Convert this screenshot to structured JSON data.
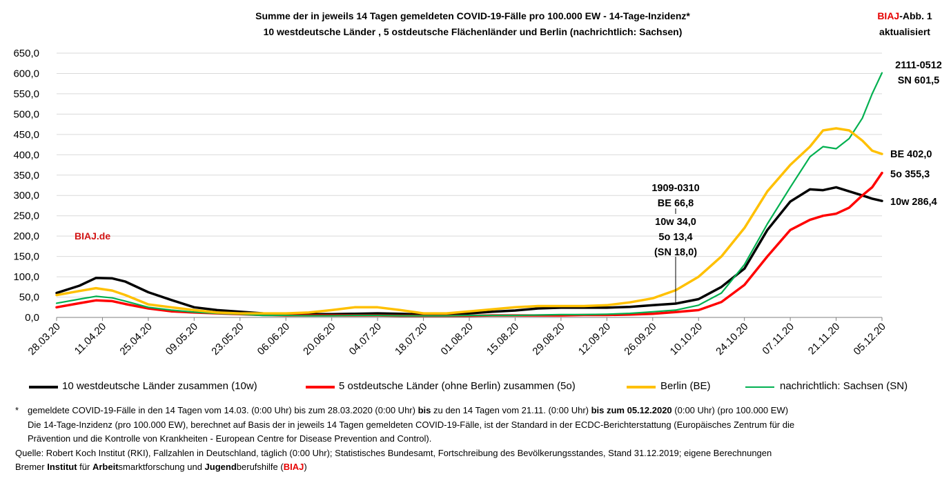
{
  "header": {
    "title_line1": "Summe der in jeweils 14 Tagen gemeldeten COVID-19-Fälle pro 100.000 EW - 14-Tage-Inzidenz*",
    "title_line2": "10 westdeutsche Länder , 5 ostdeutsche Flächenländer und Berlin (nachrichtlich: Sachsen)",
    "badge_prefix": "BIAJ",
    "badge_suffix": "-Abb. 1",
    "badge_line2": "aktualisiert"
  },
  "watermark": "BIAJ.de",
  "annotations": {
    "mid_line1": "1909-0310",
    "mid_line2": "BE 66,8",
    "mid_line3": "10w 34,0",
    "mid_line4": "5o 13,4",
    "mid_line5": "(SN 18,0)",
    "end_top_line1": "2111-0512",
    "end_top_line2": "SN 601,5",
    "end_be": "BE 402,0",
    "end_5o": "5o 355,3",
    "end_10w": "10w 286,4"
  },
  "legend": [
    {
      "label": "10 westdeutsche Länder zusammen (10w)",
      "color": "#000000"
    },
    {
      "label": "5 ostdeutsche Länder (ohne Berlin) zusammen (5o)",
      "color": "#ff0000"
    },
    {
      "label": "Berlin (BE)",
      "color": "#ffc000"
    },
    {
      "label": "nachrichtlich: Sachsen (SN)",
      "color": "#00b050"
    }
  ],
  "notes": {
    "star": "*",
    "line1_part1": "gemeldete COVID-19-Fälle in den 14 Tagen vom 14.03. (0:00 Uhr) bis zum 28.03.2020 (0:00 Uhr) ",
    "line1_bold1": "bis",
    "line1_part2": " zu den 14 Tagen vom 21.11. (0:00 Uhr) ",
    "line1_bold2": "bis zum 05.12.2020",
    "line1_part3": " (0:00 Uhr) (pro 100.000 EW)",
    "line2": "Die 14-Tage-Inzidenz (pro 100.000  EW), berechnet auf Basis der in jeweils 14 Tagen gemeldeten COVID-19-Fälle, ist der Standard in der ECDC-Berichterstattung  (Europäisches Zentrum für die",
    "line3": "Prävention und die Kontrolle von Krankheiten  - European Centre for Disease Prevention and Control).",
    "line4": "Quelle: Robert Koch Institut (RKI), Fallzahlen in Deutschland, täglich (0:00 Uhr); Statistisches Bundesamt, Fortschreibung des Bevölkerungsstandes, Stand 31.12.2019; eigene Berechnungen",
    "line5_a": "Bremer ",
    "line5_b": "Institut",
    "line5_c": " für ",
    "line5_d": "Arbeit",
    "line5_e": "smarktforschung und ",
    "line5_f": "Jugend",
    "line5_g": "berufshilfe (",
    "line5_h": "BIAJ",
    "line5_i": ")"
  },
  "chart_data": {
    "type": "line",
    "x_start": "28.03.20",
    "x_end": "05.12.20",
    "x_ticks": [
      "28.03.20",
      "11.04.20",
      "25.04.20",
      "09.05.20",
      "23.05.20",
      "06.06.20",
      "20.06.20",
      "04.07.20",
      "18.07.20",
      "01.08.20",
      "15.08.20",
      "29.08.20",
      "12.09.20",
      "26.09.20",
      "10.10.20",
      "24.10.20",
      "07.11.20",
      "21.11.20",
      "05.12.20"
    ],
    "y_ticks": [
      "0,0",
      "50,0",
      "100,0",
      "150,0",
      "200,0",
      "250,0",
      "300,0",
      "350,0",
      "400,0",
      "450,0",
      "500,0",
      "550,0",
      "600,0",
      "650,0"
    ],
    "ylim": [
      0,
      650
    ],
    "grid": "horizontal",
    "legend_position": "bottom",
    "series": [
      {
        "name": "10 westdeutsche Länder zusammen (10w)",
        "color": "#000000",
        "x": [
          "28.03.20",
          "04.04.20",
          "09.04.20",
          "14.04.20",
          "18.04.20",
          "25.04.20",
          "02.05.20",
          "09.05.20",
          "16.05.20",
          "23.05.20",
          "30.05.20",
          "06.06.20",
          "13.06.20",
          "20.06.20",
          "27.06.20",
          "04.07.20",
          "11.07.20",
          "18.07.20",
          "25.07.20",
          "01.08.20",
          "08.08.20",
          "15.08.20",
          "22.08.20",
          "29.08.20",
          "05.09.20",
          "12.09.20",
          "19.09.20",
          "26.09.20",
          "03.10.20",
          "10.10.20",
          "17.10.20",
          "24.10.20",
          "31.10.20",
          "07.11.20",
          "13.11.20",
          "17.11.20",
          "21.11.20",
          "25.11.20",
          "29.11.20",
          "02.12.20",
          "05.12.20"
        ],
        "y": [
          60,
          78,
          97,
          96,
          88,
          62,
          43,
          25,
          18,
          14,
          10,
          8,
          8,
          8,
          9,
          10,
          9,
          7,
          7,
          10,
          14,
          17,
          22,
          24,
          24,
          24,
          26,
          30,
          34,
          45,
          75,
          120,
          215,
          285,
          315,
          313,
          320,
          310,
          300,
          292,
          286.4
        ]
      },
      {
        "name": "5 ostdeutsche Länder (ohne Berlin) zusammen (5o)",
        "color": "#ff0000",
        "x": [
          "28.03.20",
          "04.04.20",
          "09.04.20",
          "14.04.20",
          "18.04.20",
          "25.04.20",
          "02.05.20",
          "09.05.20",
          "16.05.20",
          "23.05.20",
          "30.05.20",
          "06.06.20",
          "13.06.20",
          "20.06.20",
          "27.06.20",
          "04.07.20",
          "11.07.20",
          "18.07.20",
          "25.07.20",
          "01.08.20",
          "08.08.20",
          "15.08.20",
          "22.08.20",
          "29.08.20",
          "05.09.20",
          "12.09.20",
          "19.09.20",
          "26.09.20",
          "03.10.20",
          "10.10.20",
          "17.10.20",
          "24.10.20",
          "31.10.20",
          "07.11.20",
          "13.11.20",
          "17.11.20",
          "21.11.20",
          "25.11.20",
          "29.11.20",
          "02.12.20",
          "05.12.20"
        ],
        "y": [
          25,
          35,
          42,
          40,
          33,
          22,
          15,
          12,
          10,
          8,
          6,
          5,
          5,
          5,
          5,
          5,
          4,
          4,
          4,
          4,
          5,
          5,
          5,
          5,
          6,
          6,
          7,
          9,
          13,
          18,
          38,
          80,
          150,
          215,
          240,
          250,
          255,
          270,
          300,
          320,
          355.3
        ]
      },
      {
        "name": "Berlin (BE)",
        "color": "#ffc000",
        "x": [
          "28.03.20",
          "04.04.20",
          "09.04.20",
          "14.04.20",
          "18.04.20",
          "25.04.20",
          "02.05.20",
          "09.05.20",
          "16.05.20",
          "23.05.20",
          "30.05.20",
          "06.06.20",
          "13.06.20",
          "20.06.20",
          "27.06.20",
          "04.07.20",
          "11.07.20",
          "18.07.20",
          "25.07.20",
          "01.08.20",
          "08.08.20",
          "15.08.20",
          "22.08.20",
          "29.08.20",
          "05.09.20",
          "12.09.20",
          "19.09.20",
          "26.09.20",
          "03.10.20",
          "10.10.20",
          "17.10.20",
          "24.10.20",
          "31.10.20",
          "07.11.20",
          "13.11.20",
          "17.11.20",
          "21.11.20",
          "25.11.20",
          "29.11.20",
          "02.12.20",
          "05.12.20"
        ],
        "y": [
          55,
          65,
          72,
          66,
          55,
          32,
          25,
          18,
          12,
          10,
          10,
          10,
          12,
          18,
          25,
          25,
          18,
          10,
          10,
          15,
          20,
          25,
          28,
          28,
          28,
          30,
          37,
          47,
          66.8,
          100,
          150,
          220,
          310,
          375,
          420,
          460,
          465,
          460,
          435,
          410,
          402
        ]
      },
      {
        "name": "nachrichtlich: Sachsen (SN)",
        "color": "#00b050",
        "x": [
          "28.03.20",
          "04.04.20",
          "09.04.20",
          "14.04.20",
          "18.04.20",
          "25.04.20",
          "02.05.20",
          "09.05.20",
          "16.05.20",
          "23.05.20",
          "30.05.20",
          "06.06.20",
          "13.06.20",
          "20.06.20",
          "27.06.20",
          "04.07.20",
          "11.07.20",
          "18.07.20",
          "25.07.20",
          "01.08.20",
          "08.08.20",
          "15.08.20",
          "22.08.20",
          "29.08.20",
          "05.09.20",
          "12.09.20",
          "19.09.20",
          "26.09.20",
          "03.10.20",
          "10.10.20",
          "17.10.20",
          "24.10.20",
          "31.10.20",
          "07.11.20",
          "13.11.20",
          "17.11.20",
          "21.11.20",
          "25.11.20",
          "29.11.20",
          "02.12.20",
          "05.12.20"
        ],
        "y": [
          35,
          45,
          52,
          48,
          40,
          25,
          18,
          13,
          10,
          8,
          5,
          5,
          4,
          4,
          5,
          5,
          4,
          4,
          4,
          5,
          5,
          5,
          6,
          7,
          7,
          8,
          10,
          14,
          18,
          30,
          60,
          130,
          230,
          320,
          395,
          420,
          415,
          440,
          490,
          550,
          601.5
        ]
      }
    ]
  }
}
